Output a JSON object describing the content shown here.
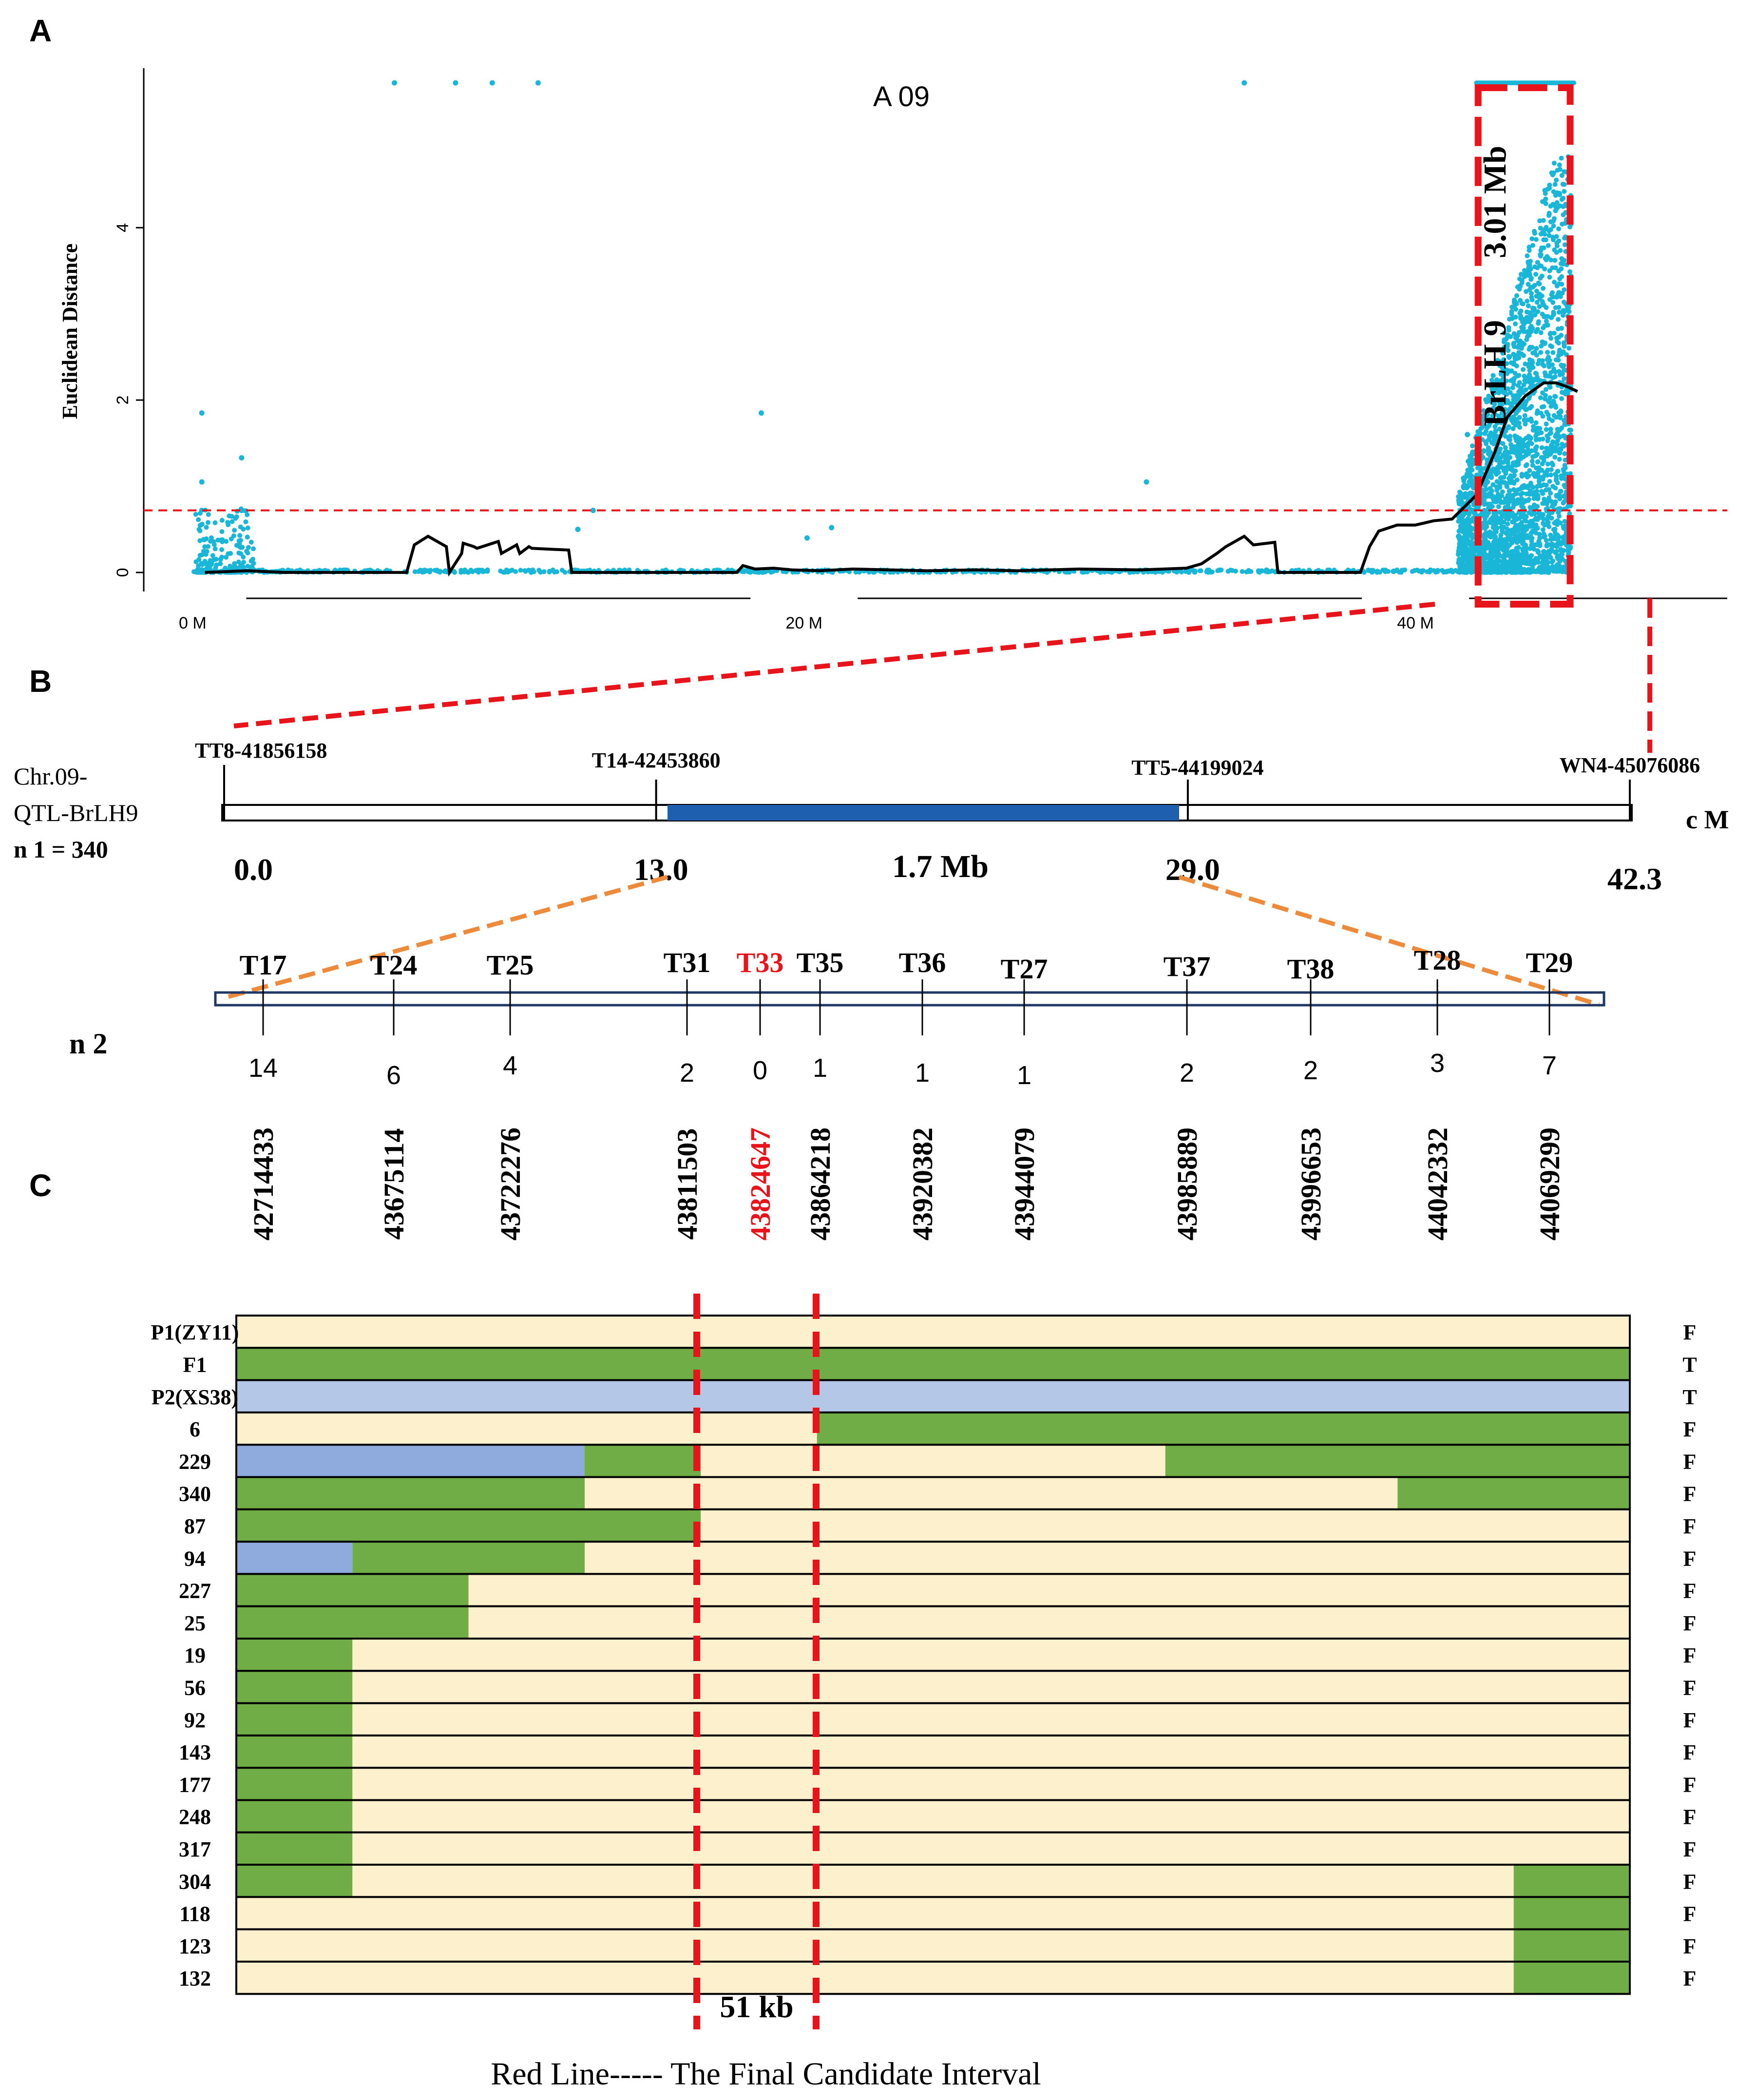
{
  "panel_labels": [
    "A",
    "B",
    "C"
  ],
  "panelA": {
    "chart_data": {
      "type": "scatter",
      "title": "A 09",
      "ylabel": "Euclidean Distance",
      "xlabel": "",
      "x_ticks": [
        "0 M",
        "20 M",
        "40 M"
      ],
      "x_tick_values": [
        0,
        20,
        40
      ],
      "xlim": [
        -1.6,
        50.2
      ],
      "y_ticks": [
        0,
        2,
        4
      ],
      "ylim": [
        -0.3,
        5.85
      ],
      "threshold": 0.72,
      "region_label_1": "BrLH 9",
      "region_label_2": "3.01 Mb",
      "region_mb": [
        42.05,
        45.06
      ],
      "outlier_points": [
        {
          "x": 6.6,
          "y": 5.68
        },
        {
          "x": 8.6,
          "y": 5.68
        },
        {
          "x": 9.8,
          "y": 5.68
        },
        {
          "x": 11.3,
          "y": 5.68
        },
        {
          "x": 34.4,
          "y": 5.68
        },
        {
          "x": 0.3,
          "y": 1.85
        },
        {
          "x": 1.6,
          "y": 1.33
        },
        {
          "x": 0.3,
          "y": 1.05
        },
        {
          "x": 18.6,
          "y": 1.85
        },
        {
          "x": 31.2,
          "y": 1.05
        },
        {
          "x": 13.1,
          "y": 0.72
        },
        {
          "x": 12.6,
          "y": 0.5
        },
        {
          "x": 20.1,
          "y": 0.4
        },
        {
          "x": 20.9,
          "y": 0.52
        },
        {
          "x": 42.5,
          "y": 2.0
        },
        {
          "x": 41.7,
          "y": 1.6
        }
      ],
      "smooth_line": {
        "x": [
          0.4,
          1.8,
          3.0,
          7.0,
          7.25,
          7.7,
          8.3,
          8.4,
          8.8,
          8.85,
          9.2,
          9.3,
          10.0,
          10.1,
          10.6,
          10.7,
          11.0,
          11.1,
          12.3,
          12.4,
          17.8,
          18.0,
          18.4,
          19.0,
          19.6,
          20.5,
          21.6,
          24.0,
          25.6,
          27.0,
          29.0,
          31.0,
          32.5,
          33.0,
          33.5,
          33.8,
          34.4,
          34.7,
          35.4,
          35.5,
          38.2,
          38.5,
          38.8,
          39.4,
          40.0,
          40.6,
          41.2,
          42.0,
          42.6,
          43.0,
          43.6,
          44.2,
          44.6,
          45.0,
          45.3
        ],
        "y": [
          0.0,
          0.02,
          0.0,
          0.0,
          0.32,
          0.42,
          0.3,
          0.0,
          0.22,
          0.34,
          0.3,
          0.28,
          0.36,
          0.22,
          0.32,
          0.22,
          0.3,
          0.28,
          0.26,
          0.0,
          0.0,
          0.08,
          0.04,
          0.05,
          0.03,
          0.02,
          0.04,
          0.02,
          0.03,
          0.02,
          0.04,
          0.03,
          0.05,
          0.1,
          0.22,
          0.3,
          0.42,
          0.32,
          0.35,
          0.0,
          0.0,
          0.3,
          0.48,
          0.55,
          0.55,
          0.6,
          0.62,
          0.9,
          1.4,
          1.8,
          2.05,
          2.2,
          2.2,
          2.15,
          2.1
        ]
      },
      "series": [
        {
          "name": "points",
          "color": "#1ab6d8"
        },
        {
          "name": "sliding-window fit",
          "color": "#000000"
        },
        {
          "name": "threshold",
          "color": "#e8141b"
        }
      ]
    }
  },
  "panelB": {
    "chr_label_1": "Chr.09-",
    "chr_label_2": "QTL-BrLH9",
    "n1_label": "n 1 = 340",
    "cm_unit": "c M",
    "markers_top": [
      {
        "name": "TT8-41856158",
        "cm": 0.0,
        "cm_label": "0.0"
      },
      {
        "name": "T14-42453860",
        "cm": 13.0,
        "cm_label": "13.0"
      },
      {
        "name": "TT5-44199024",
        "cm": 29.0,
        "cm_label": "29.0"
      },
      {
        "name": "WN4-45076086",
        "cm": 42.3,
        "cm_label": "42.3"
      }
    ],
    "interval_label": "1.7 Mb",
    "n2_label": "n 2",
    "fine_markers": [
      {
        "name": "T17",
        "recomb": "14",
        "position": "42714433",
        "highlight": false
      },
      {
        "name": "T24",
        "recomb": "6",
        "position": "43675114",
        "highlight": false
      },
      {
        "name": "T25",
        "recomb": "4",
        "position": "43722276",
        "highlight": false
      },
      {
        "name": "T31",
        "recomb": "2",
        "position": "43811503",
        "highlight": false
      },
      {
        "name": "T33",
        "recomb": "0",
        "position": "43824647",
        "highlight": true
      },
      {
        "name": "T35",
        "recomb": "1",
        "position": "43864218",
        "highlight": false
      },
      {
        "name": "T36",
        "recomb": "1",
        "position": "43920382",
        "highlight": false
      },
      {
        "name": "T27",
        "recomb": "1",
        "position": "43944079",
        "highlight": false
      },
      {
        "name": "T37",
        "recomb": "2",
        "position": "43985889",
        "highlight": false
      },
      {
        "name": "T38",
        "recomb": "2",
        "position": "43996653",
        "highlight": false
      },
      {
        "name": "T28",
        "recomb": "3",
        "position": "44042332",
        "highlight": false
      },
      {
        "name": "T29",
        "recomb": "7",
        "position": "44069299",
        "highlight": false
      }
    ]
  },
  "panelC": {
    "colors": {
      "cream": "#fdf0cc",
      "green": "#70ad47",
      "blue": "#8faadc",
      "lightblue": "#b4c7e7"
    },
    "segment_scale": 12,
    "rows": [
      {
        "label": "P1(ZY11)",
        "pheno": "F",
        "segments": [
          [
            0,
            12,
            "cream"
          ]
        ]
      },
      {
        "label": "F1",
        "pheno": "T",
        "segments": [
          [
            0,
            12,
            "green"
          ]
        ]
      },
      {
        "label": "P2(XS38)",
        "pheno": "T",
        "segments": [
          [
            0,
            12,
            "lightblue"
          ]
        ]
      },
      {
        "label": "6",
        "pheno": "F",
        "segments": [
          [
            0,
            5,
            "cream"
          ],
          [
            5,
            12,
            "green"
          ]
        ]
      },
      {
        "label": "229",
        "pheno": "F",
        "segments": [
          [
            0,
            3,
            "blue"
          ],
          [
            3,
            4,
            "green"
          ],
          [
            4,
            8,
            "cream"
          ],
          [
            8,
            12,
            "green"
          ]
        ]
      },
      {
        "label": "340",
        "pheno": "F",
        "segments": [
          [
            0,
            3,
            "green"
          ],
          [
            3,
            10,
            "cream"
          ],
          [
            10,
            12,
            "green"
          ]
        ]
      },
      {
        "label": "87",
        "pheno": "F",
        "segments": [
          [
            0,
            4,
            "green"
          ],
          [
            4,
            12,
            "cream"
          ]
        ]
      },
      {
        "label": "94",
        "pheno": "F",
        "segments": [
          [
            0,
            1,
            "blue"
          ],
          [
            1,
            3,
            "green"
          ],
          [
            3,
            12,
            "cream"
          ]
        ]
      },
      {
        "label": "227",
        "pheno": "F",
        "segments": [
          [
            0,
            2,
            "green"
          ],
          [
            2,
            12,
            "cream"
          ]
        ]
      },
      {
        "label": "25",
        "pheno": "F",
        "segments": [
          [
            0,
            2,
            "green"
          ],
          [
            2,
            12,
            "cream"
          ]
        ]
      },
      {
        "label": "19",
        "pheno": "F",
        "segments": [
          [
            0,
            1,
            "green"
          ],
          [
            1,
            12,
            "cream"
          ]
        ]
      },
      {
        "label": "56",
        "pheno": "F",
        "segments": [
          [
            0,
            1,
            "green"
          ],
          [
            1,
            12,
            "cream"
          ]
        ]
      },
      {
        "label": "92",
        "pheno": "F",
        "segments": [
          [
            0,
            1,
            "green"
          ],
          [
            1,
            12,
            "cream"
          ]
        ]
      },
      {
        "label": "143",
        "pheno": "F",
        "segments": [
          [
            0,
            1,
            "green"
          ],
          [
            1,
            12,
            "cream"
          ]
        ]
      },
      {
        "label": "177",
        "pheno": "F",
        "segments": [
          [
            0,
            1,
            "green"
          ],
          [
            1,
            12,
            "cream"
          ]
        ]
      },
      {
        "label": "248",
        "pheno": "F",
        "segments": [
          [
            0,
            1,
            "green"
          ],
          [
            1,
            12,
            "cream"
          ]
        ]
      },
      {
        "label": "317",
        "pheno": "F",
        "segments": [
          [
            0,
            1,
            "green"
          ],
          [
            1,
            12,
            "cream"
          ]
        ]
      },
      {
        "label": "304",
        "pheno": "F",
        "segments": [
          [
            0,
            1,
            "green"
          ],
          [
            1,
            11,
            "cream"
          ],
          [
            11,
            12,
            "green"
          ]
        ]
      },
      {
        "label": "118",
        "pheno": "F",
        "segments": [
          [
            0,
            11,
            "cream"
          ],
          [
            11,
            12,
            "green"
          ]
        ]
      },
      {
        "label": "123",
        "pheno": "F",
        "segments": [
          [
            0,
            11,
            "cream"
          ],
          [
            11,
            12,
            "green"
          ]
        ]
      },
      {
        "label": "132",
        "pheno": "F",
        "segments": [
          [
            0,
            11,
            "cream"
          ],
          [
            11,
            12,
            "green"
          ]
        ]
      }
    ],
    "interval_label": "51 kb",
    "caption": "Red Line----- The Final Candidate Interval"
  }
}
